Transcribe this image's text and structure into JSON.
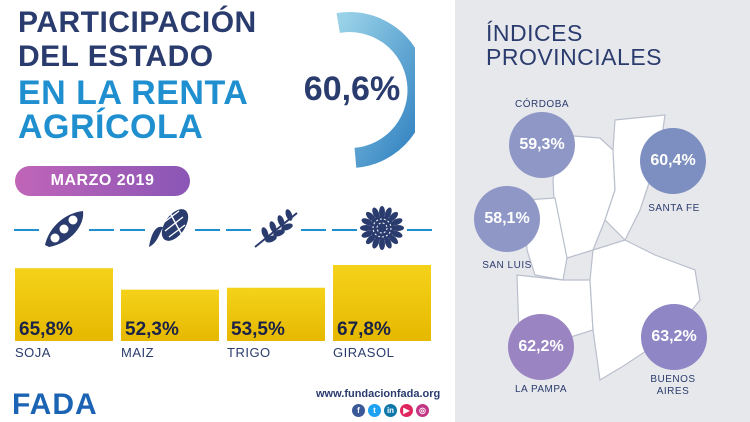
{
  "header": {
    "title_line1": "PARTICIPACIÓN",
    "title_line2": "DEL ESTADO",
    "title_line3": "EN LA RENTA",
    "title_line4": "AGRÍCOLA",
    "overall_value": "60,6%",
    "overall_fraction": 0.606
  },
  "month_label": "MARZO 2019",
  "chart_data": {
    "type": "bar",
    "categories": [
      "SOJA",
      "MAIZ",
      "TRIGO",
      "GIRASOL"
    ],
    "values": [
      65.8,
      52.3,
      53.5,
      67.8
    ],
    "value_labels": [
      "65,8%",
      "52,3%",
      "53,5%",
      "67,8%"
    ],
    "icons": [
      "soy-pod-icon",
      "corn-cob-icon",
      "wheat-branch-icon",
      "sunflower-icon"
    ],
    "bar_color": "#f5d21a",
    "bar_color_bottom": "#e6b800"
  },
  "provinces": {
    "title_line1": "ÍNDICES",
    "title_line2": "PROVINCIALES",
    "items": [
      {
        "name": "CÓRDOBA",
        "value": "59,3%",
        "color": "#8f97c6"
      },
      {
        "name": "SANTA FE",
        "value": "60,4%",
        "color": "#7c8fc0"
      },
      {
        "name": "SAN LUIS",
        "value": "58,1%",
        "color": "#8f97c6"
      },
      {
        "name": "LA PAMPA",
        "value": "62,2%",
        "color": "#9a84c2"
      },
      {
        "name": "BUENOS AIRES",
        "value": "63,2%",
        "color": "#8f86c5"
      }
    ]
  },
  "footer": {
    "logo": "FADA",
    "url": "www.fundacionfada.org",
    "socials": [
      "f",
      "t",
      "in",
      "yt",
      "ig"
    ]
  },
  "colors": {
    "navy": "#2a3b6e",
    "blue": "#1f8fd0",
    "panel": "#e7e8ec"
  }
}
